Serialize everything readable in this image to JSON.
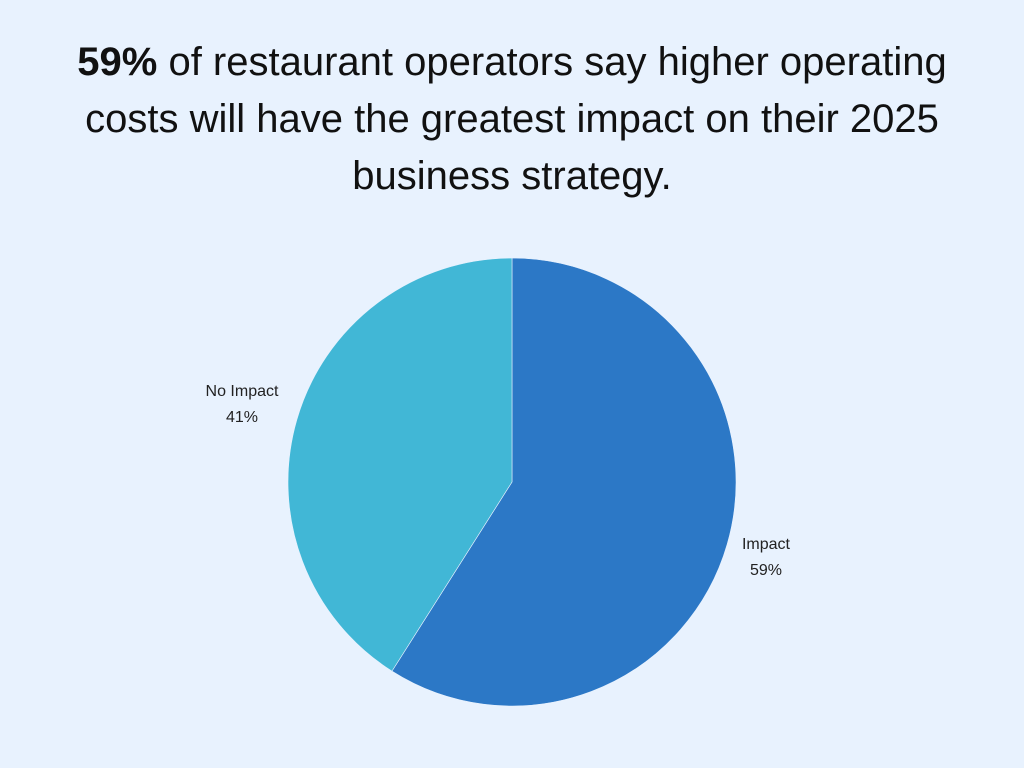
{
  "headline": {
    "stat": "59%",
    "rest": " of restaurant operators say higher operating costs will have the greatest impact on their 2025 business strategy."
  },
  "colors": {
    "background": "#E8F2FE",
    "impact": "#2C78C6",
    "no_impact": "#41B7D6",
    "text": "#111111"
  },
  "labels": {
    "no_impact": {
      "name": "No Impact",
      "value": "41%"
    },
    "impact": {
      "name": "Impact",
      "value": "59%"
    }
  },
  "chart_data": {
    "type": "pie",
    "title": "59% of restaurant operators say higher operating costs will have the greatest impact on their 2025 business strategy.",
    "categories": [
      "Impact",
      "No Impact"
    ],
    "values": [
      59,
      41
    ],
    "unit": "%",
    "colors": [
      "#2C78C6",
      "#41B7D6"
    ],
    "start_angle": "12 o'clock, clockwise",
    "legend": "none (direct labels outside slices)"
  }
}
